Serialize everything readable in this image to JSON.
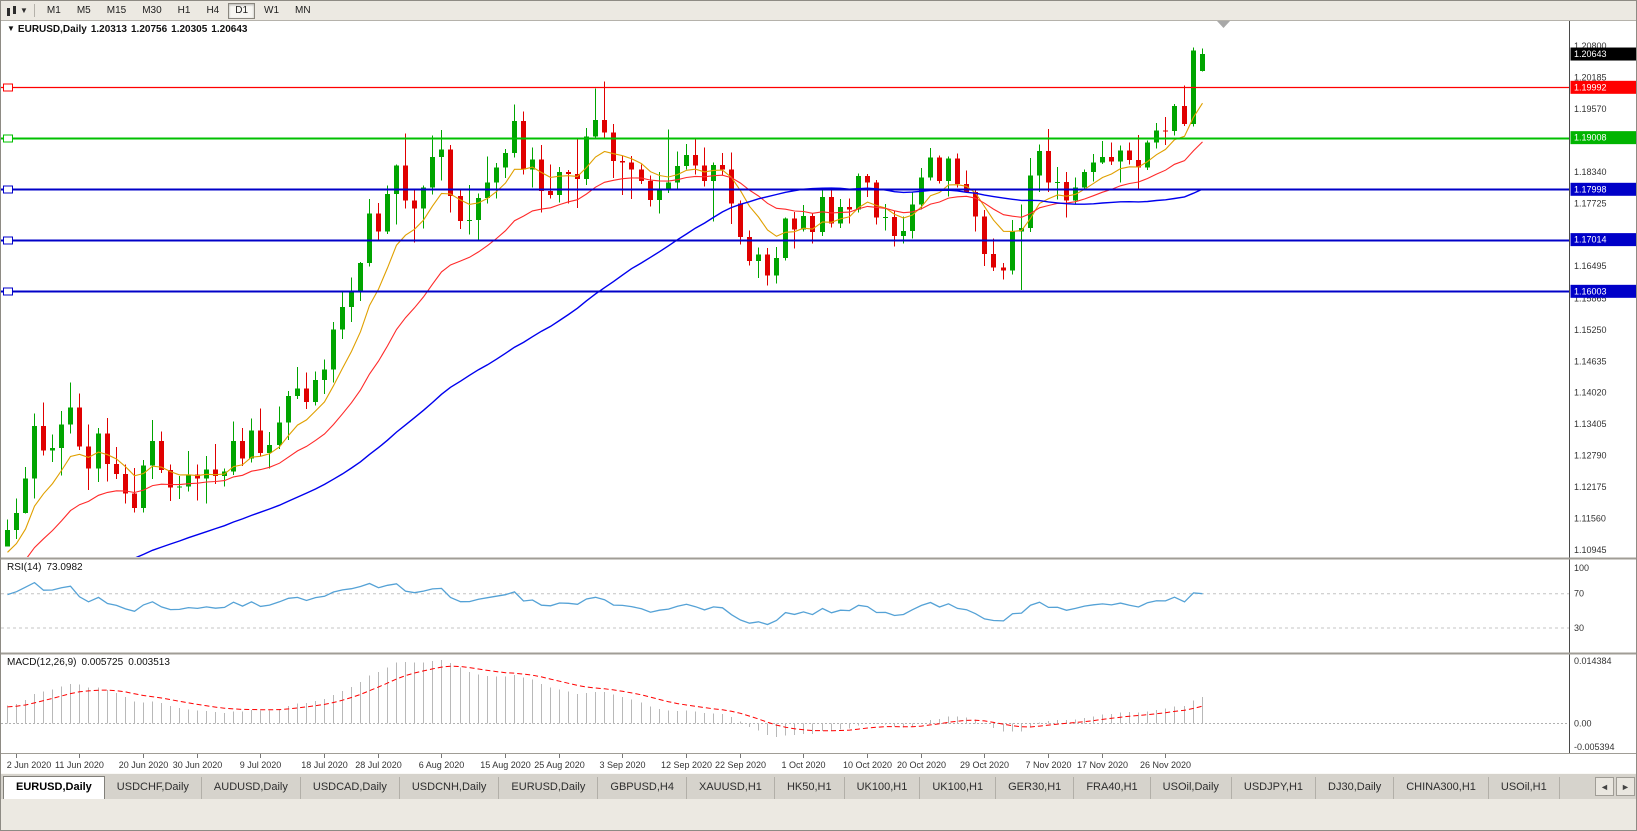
{
  "toolbar": {
    "timeframes": [
      "M1",
      "M5",
      "M15",
      "M30",
      "H1",
      "H4",
      "D1",
      "W1",
      "MN"
    ],
    "active": "D1",
    "dropdown_glyph": "▼"
  },
  "chart": {
    "title": {
      "expand_glyph": "▼",
      "symbol_period": "EURUSD,Daily",
      "open": "1.20313",
      "high": "1.20756",
      "low": "1.20305",
      "close": "1.20643"
    }
  },
  "panes": {
    "rsi_name": "RSI(14)",
    "rsi_value": "73.0982",
    "macd_name": "MACD(12,26,9)",
    "macd_main": "0.005725",
    "macd_signal": "0.003513"
  },
  "tabs": {
    "items": [
      "EURUSD,Daily",
      "USDCHF,Daily",
      "AUDUSD,Daily",
      "USDCAD,Daily",
      "USDCNH,Daily",
      "EURUSD,Daily",
      "GBPUSD,H4",
      "XAUUSD,H1",
      "HK50,H1",
      "UK100,H1",
      "UK100,H1",
      "GER30,H1",
      "FRA40,H1",
      "USOil,Daily",
      "USDJPY,H1",
      "DJ30,Daily",
      "CHINA300,H1",
      "USOil,H1"
    ],
    "active_index": 0,
    "scroll_left": "◄",
    "scroll_right": "►"
  },
  "chart_data": {
    "type": "candlestick",
    "symbol": "EURUSD",
    "period": "Daily",
    "colors": {
      "bull": "#00a500",
      "bear": "#e00000",
      "background": "#ffffff",
      "axis_text": "#333333",
      "axis_line": "#4a4a4a",
      "separator": "#a09d96",
      "shift_marker": "#a8a8a8"
    },
    "y_axis": {
      "top": 1.208,
      "bottom": 1.10945,
      "tick_labels": [
        "1.20800",
        "1.20185",
        "1.19570",
        "1.18340",
        "1.17725",
        "1.16495",
        "1.15865",
        "1.15250",
        "1.14635",
        "1.14020",
        "1.13405",
        "1.12790",
        "1.12175",
        "1.11560",
        "1.10945"
      ]
    },
    "price_badges": [
      {
        "label": "1.20643",
        "price": 1.20643,
        "bg": "#000000"
      },
      {
        "label": "1.19992",
        "price": 1.19992,
        "bg": "#ff0000"
      },
      {
        "label": "1.19008",
        "price": 1.19008,
        "bg": "#00b400"
      },
      {
        "label": "1.17998",
        "price": 1.17998,
        "bg": "#0000c8"
      },
      {
        "label": "1.17014",
        "price": 1.17014,
        "bg": "#0000c8"
      },
      {
        "label": "1.16003",
        "price": 1.16003,
        "bg": "#0000c8"
      }
    ],
    "horizontal_lines": [
      {
        "price": 1.19992,
        "color": "#ff0000",
        "width": 1.2
      },
      {
        "price": 1.19008,
        "color": "#00c000",
        "width": 2
      },
      {
        "price": 1.17998,
        "color": "#0000c8",
        "width": 2
      },
      {
        "price": 1.17014,
        "color": "#0000c8",
        "width": 2
      },
      {
        "price": 1.16003,
        "color": "#0000c8",
        "width": 2
      }
    ],
    "moving_averages": [
      {
        "period": 8,
        "method": "ema",
        "color": "#e0a000",
        "width": 1.1
      },
      {
        "period": 21,
        "method": "ema",
        "color": "#ff2a2a",
        "width": 1.1
      },
      {
        "period": 50,
        "method": "sma",
        "color": "#0000ee",
        "width": 1.4
      }
    ],
    "x_axis": {
      "labels": [
        [
          1,
          "2 Jun 2020"
        ],
        [
          8,
          "11 Jun 2020"
        ],
        [
          15,
          "20 Jun 2020"
        ],
        [
          21,
          "30 Jun 2020"
        ],
        [
          28,
          "9 Jul 2020"
        ],
        [
          35,
          "18 Jul 2020"
        ],
        [
          41,
          "28 Jul 2020"
        ],
        [
          48,
          "6 Aug 2020"
        ],
        [
          55,
          "15 Aug 2020"
        ],
        [
          61,
          "25 Aug 2020"
        ],
        [
          68,
          "3 Sep 2020"
        ],
        [
          75,
          "12 Sep 2020"
        ],
        [
          81,
          "22 Sep 2020"
        ],
        [
          88,
          "1 Oct 2020"
        ],
        [
          95,
          "10 Oct 2020"
        ],
        [
          101,
          "20 Oct 2020"
        ],
        [
          108,
          "29 Oct 2020"
        ],
        [
          115,
          "7 Nov 2020"
        ],
        [
          121,
          "17 Nov 2020"
        ],
        [
          128,
          "26 Nov 2020"
        ]
      ]
    },
    "rsi": {
      "period": 14,
      "value": "73.0982",
      "color": "#55a2d6",
      "level_lines": [
        70,
        30
      ],
      "axis_labels": [
        [
          "100",
          100
        ],
        [
          "70",
          70
        ],
        [
          "30",
          30
        ]
      ],
      "level_color": "#c4c4c4"
    },
    "macd": {
      "params": "12,26,9",
      "main_value": "0.005725",
      "signal_value": "0.003513",
      "axis_max": 0.014384,
      "axis_min": -0.005394,
      "axis_max_label": "0.014384",
      "axis_zero_label": "0.00",
      "axis_min_label": "-0.005394",
      "histogram_color": "#b8b8b8",
      "signal_color": "#ff0000",
      "zero_line_color": "#b0b0b0"
    },
    "candles": [
      [
        1.1101,
        1.1154,
        1.1101,
        1.1134
      ],
      [
        1.1134,
        1.1195,
        1.1116,
        1.1167
      ],
      [
        1.1167,
        1.1257,
        1.1166,
        1.1234
      ],
      [
        1.1234,
        1.1361,
        1.1195,
        1.1337
      ],
      [
        1.1337,
        1.1383,
        1.1279,
        1.1289
      ],
      [
        1.1289,
        1.132,
        1.1267,
        1.1294
      ],
      [
        1.1294,
        1.1366,
        1.124,
        1.134
      ],
      [
        1.134,
        1.1422,
        1.1322,
        1.1373
      ],
      [
        1.1373,
        1.1401,
        1.129,
        1.1297
      ],
      [
        1.1297,
        1.134,
        1.1212,
        1.1254
      ],
      [
        1.1254,
        1.1333,
        1.1227,
        1.1322
      ],
      [
        1.1322,
        1.1353,
        1.1228,
        1.1263
      ],
      [
        1.1263,
        1.1296,
        1.1233,
        1.1243
      ],
      [
        1.1243,
        1.1262,
        1.1185,
        1.1205
      ],
      [
        1.1205,
        1.1255,
        1.1168,
        1.1177
      ],
      [
        1.1177,
        1.127,
        1.1168,
        1.126
      ],
      [
        1.126,
        1.1349,
        1.1233,
        1.1308
      ],
      [
        1.1308,
        1.1326,
        1.1245,
        1.1251
      ],
      [
        1.1251,
        1.1262,
        1.119,
        1.1217
      ],
      [
        1.1217,
        1.1239,
        1.1194,
        1.1219
      ],
      [
        1.1219,
        1.1288,
        1.1209,
        1.1242
      ],
      [
        1.1242,
        1.1262,
        1.1191,
        1.1234
      ],
      [
        1.1234,
        1.1278,
        1.1185,
        1.1252
      ],
      [
        1.1252,
        1.1302,
        1.1224,
        1.1239
      ],
      [
        1.1239,
        1.1254,
        1.1219,
        1.1248
      ],
      [
        1.1248,
        1.1346,
        1.1241,
        1.1308
      ],
      [
        1.1308,
        1.1333,
        1.1259,
        1.1273
      ],
      [
        1.1273,
        1.1352,
        1.1266,
        1.1328
      ],
      [
        1.1328,
        1.1371,
        1.1277,
        1.1284
      ],
      [
        1.1284,
        1.1325,
        1.1254,
        1.13
      ],
      [
        1.13,
        1.1375,
        1.1292,
        1.1344
      ],
      [
        1.1344,
        1.1405,
        1.131,
        1.1396
      ],
      [
        1.1396,
        1.1452,
        1.139,
        1.141
      ],
      [
        1.141,
        1.1442,
        1.137,
        1.1384
      ],
      [
        1.1384,
        1.1444,
        1.1377,
        1.1427
      ],
      [
        1.1427,
        1.1467,
        1.14,
        1.1447
      ],
      [
        1.1447,
        1.154,
        1.1422,
        1.1526
      ],
      [
        1.1526,
        1.1601,
        1.1507,
        1.157
      ],
      [
        1.157,
        1.1627,
        1.154,
        1.1598
      ],
      [
        1.1598,
        1.1658,
        1.1581,
        1.1656
      ],
      [
        1.1656,
        1.1781,
        1.1649,
        1.1752
      ],
      [
        1.1752,
        1.1773,
        1.17,
        1.1717
      ],
      [
        1.1717,
        1.1807,
        1.1712,
        1.1791
      ],
      [
        1.1791,
        1.1848,
        1.1731,
        1.1846
      ],
      [
        1.1846,
        1.1909,
        1.1762,
        1.1778
      ],
      [
        1.1778,
        1.1797,
        1.1696,
        1.1762
      ],
      [
        1.1762,
        1.1807,
        1.1723,
        1.1803
      ],
      [
        1.1803,
        1.1905,
        1.179,
        1.1863
      ],
      [
        1.1863,
        1.1916,
        1.1817,
        1.1878
      ],
      [
        1.1878,
        1.1886,
        1.1754,
        1.1787
      ],
      [
        1.1787,
        1.18,
        1.1722,
        1.1738
      ],
      [
        1.1738,
        1.1808,
        1.1711,
        1.174
      ],
      [
        1.174,
        1.1792,
        1.1698,
        1.1783
      ],
      [
        1.1783,
        1.1864,
        1.1772,
        1.1813
      ],
      [
        1.1813,
        1.1851,
        1.1782,
        1.1842
      ],
      [
        1.1842,
        1.1879,
        1.1822,
        1.1871
      ],
      [
        1.1871,
        1.1966,
        1.1862,
        1.1933
      ],
      [
        1.1933,
        1.1952,
        1.1829,
        1.1839
      ],
      [
        1.1839,
        1.1882,
        1.1803,
        1.1858
      ],
      [
        1.1858,
        1.1886,
        1.1754,
        1.1796
      ],
      [
        1.1796,
        1.1848,
        1.1782,
        1.1789
      ],
      [
        1.1789,
        1.1843,
        1.1774,
        1.1834
      ],
      [
        1.1834,
        1.1838,
        1.1772,
        1.183
      ],
      [
        1.183,
        1.19,
        1.1763,
        1.182
      ],
      [
        1.182,
        1.192,
        1.1808,
        1.1903
      ],
      [
        1.1903,
        1.1997,
        1.1898,
        1.1935
      ],
      [
        1.1935,
        1.2011,
        1.1901,
        1.1911
      ],
      [
        1.1911,
        1.1927,
        1.1822,
        1.1855
      ],
      [
        1.1855,
        1.1865,
        1.1789,
        1.1852
      ],
      [
        1.1852,
        1.1865,
        1.1781,
        1.1839
      ],
      [
        1.1839,
        1.1848,
        1.181,
        1.1816
      ],
      [
        1.1816,
        1.1827,
        1.1766,
        1.1779
      ],
      [
        1.1779,
        1.1834,
        1.1752,
        1.1801
      ],
      [
        1.1801,
        1.1917,
        1.1793,
        1.1813
      ],
      [
        1.1813,
        1.1874,
        1.18,
        1.1845
      ],
      [
        1.1845,
        1.1888,
        1.1839,
        1.1867
      ],
      [
        1.1867,
        1.19,
        1.1829,
        1.1846
      ],
      [
        1.1846,
        1.1882,
        1.1805,
        1.1816
      ],
      [
        1.1816,
        1.1852,
        1.1737,
        1.1847
      ],
      [
        1.1847,
        1.1871,
        1.1827,
        1.1839
      ],
      [
        1.1839,
        1.1872,
        1.1732,
        1.1772
      ],
      [
        1.1772,
        1.1778,
        1.1692,
        1.1707
      ],
      [
        1.1707,
        1.1719,
        1.1651,
        1.166
      ],
      [
        1.166,
        1.1686,
        1.1626,
        1.1672
      ],
      [
        1.1672,
        1.1685,
        1.1612,
        1.1631
      ],
      [
        1.1631,
        1.1687,
        1.1616,
        1.1665
      ],
      [
        1.1665,
        1.1745,
        1.1661,
        1.1743
      ],
      [
        1.1743,
        1.1755,
        1.1684,
        1.1721
      ],
      [
        1.1721,
        1.1769,
        1.1717,
        1.1748
      ],
      [
        1.1748,
        1.1752,
        1.1694,
        1.1716
      ],
      [
        1.1716,
        1.1797,
        1.1708,
        1.1785
      ],
      [
        1.1785,
        1.1798,
        1.1725,
        1.1733
      ],
      [
        1.1733,
        1.1781,
        1.1724,
        1.1765
      ],
      [
        1.1765,
        1.1782,
        1.1733,
        1.176
      ],
      [
        1.176,
        1.1831,
        1.1754,
        1.1826
      ],
      [
        1.1826,
        1.183,
        1.1785,
        1.1813
      ],
      [
        1.1813,
        1.1818,
        1.1731,
        1.1745
      ],
      [
        1.1745,
        1.1771,
        1.1719,
        1.1746
      ],
      [
        1.1746,
        1.1758,
        1.1688,
        1.1708
      ],
      [
        1.1708,
        1.1747,
        1.1694,
        1.1718
      ],
      [
        1.1718,
        1.1794,
        1.1704,
        1.177
      ],
      [
        1.177,
        1.1841,
        1.176,
        1.1823
      ],
      [
        1.1823,
        1.1881,
        1.1817,
        1.1862
      ],
      [
        1.1862,
        1.1866,
        1.1811,
        1.1816
      ],
      [
        1.1816,
        1.1864,
        1.1786,
        1.186
      ],
      [
        1.186,
        1.187,
        1.1803,
        1.181
      ],
      [
        1.181,
        1.1837,
        1.1794,
        1.1795
      ],
      [
        1.1795,
        1.18,
        1.1717,
        1.1747
      ],
      [
        1.1747,
        1.1759,
        1.165,
        1.1673
      ],
      [
        1.1673,
        1.1704,
        1.164,
        1.1647
      ],
      [
        1.1647,
        1.1656,
        1.1623,
        1.1641
      ],
      [
        1.1641,
        1.174,
        1.1633,
        1.1717
      ],
      [
        1.1717,
        1.177,
        1.1603,
        1.1724
      ],
      [
        1.1724,
        1.1861,
        1.1716,
        1.1827
      ],
      [
        1.1827,
        1.1887,
        1.1795,
        1.1875
      ],
      [
        1.1875,
        1.1918,
        1.1795,
        1.1813
      ],
      [
        1.1813,
        1.1843,
        1.178,
        1.1814
      ],
      [
        1.1814,
        1.1834,
        1.1745,
        1.1778
      ],
      [
        1.1778,
        1.1823,
        1.1771,
        1.1803
      ],
      [
        1.1803,
        1.1839,
        1.1799,
        1.1834
      ],
      [
        1.1834,
        1.1869,
        1.1815,
        1.1852
      ],
      [
        1.1852,
        1.1894,
        1.1849,
        1.1863
      ],
      [
        1.1863,
        1.1891,
        1.1847,
        1.1854
      ],
      [
        1.1854,
        1.1885,
        1.1813,
        1.1876
      ],
      [
        1.1876,
        1.1891,
        1.1848,
        1.1857
      ],
      [
        1.1857,
        1.1906,
        1.18,
        1.1842
      ],
      [
        1.1842,
        1.1895,
        1.1838,
        1.1891
      ],
      [
        1.1891,
        1.1929,
        1.188,
        1.1915
      ],
      [
        1.1915,
        1.1941,
        1.1886,
        1.1914
      ],
      [
        1.1914,
        1.1967,
        1.1905,
        1.1963
      ],
      [
        1.1963,
        1.2003,
        1.1924,
        1.1927
      ],
      [
        1.1927,
        1.2077,
        1.1923,
        1.2071
      ],
      [
        1.20313,
        1.20756,
        1.20305,
        1.20643
      ]
    ]
  }
}
